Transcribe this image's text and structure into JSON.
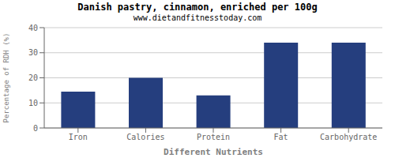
{
  "chart_data": {
    "type": "bar",
    "title": "Danish pastry, cinnamon, enriched per 100g",
    "subtitle": "www.dietandfitnesstoday.com",
    "xlabel": "Different Nutrients",
    "ylabel": "Percentage of RDH (%)",
    "categories": [
      "Iron",
      "Calories",
      "Protein",
      "Fat",
      "Carbohydrate"
    ],
    "values": [
      14.5,
      20.0,
      13.0,
      34.0,
      34.0
    ],
    "color": "#253e7e",
    "ylim": [
      0,
      40
    ],
    "yticks": [
      0,
      10,
      20,
      30,
      40
    ],
    "grid": true
  }
}
